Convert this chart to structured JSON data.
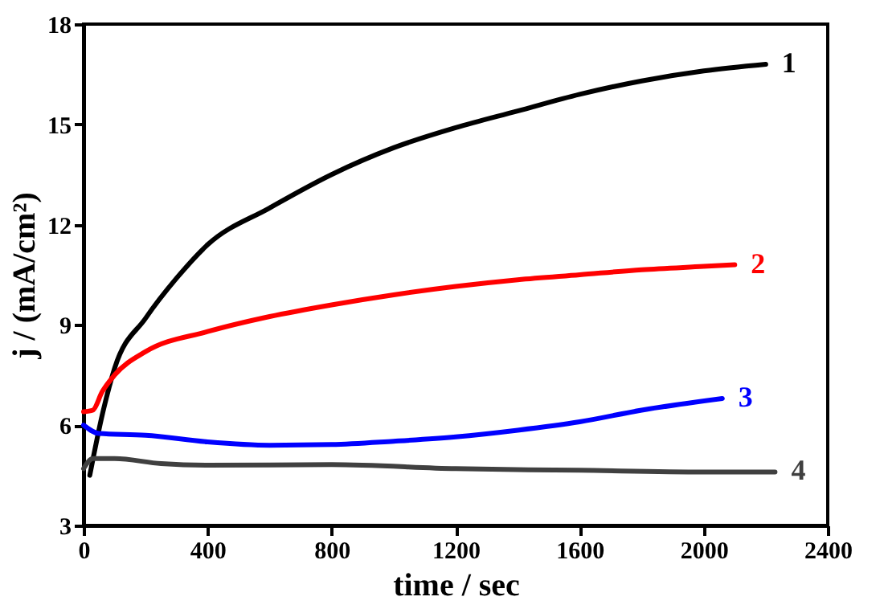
{
  "chart_data": {
    "type": "line",
    "xlabel": "time / sec",
    "ylabel": "j / (mA/cm²)",
    "xlim": [
      0,
      2400
    ],
    "ylim": [
      3,
      18
    ],
    "xticks": [
      0,
      400,
      800,
      1200,
      1600,
      2000,
      2400
    ],
    "yticks": [
      3,
      6,
      9,
      12,
      15,
      18
    ],
    "grid": false,
    "legend": false,
    "marker": "none",
    "line_style": "solid",
    "series": [
      {
        "name": "1",
        "color": "#000000",
        "x": [
          20,
          60,
          100,
          200,
          300,
          400,
          600,
          800,
          1000,
          1200,
          1400,
          1600,
          1800,
          2000,
          2200
        ],
        "values": [
          4.5,
          6.3,
          7.7,
          9.2,
          10.4,
          11.4,
          12.5,
          13.5,
          14.3,
          14.9,
          15.4,
          15.9,
          16.3,
          16.6,
          16.8
        ]
      },
      {
        "name": "2",
        "color": "#ff0000",
        "x": [
          0,
          30,
          60,
          100,
          200,
          400,
          600,
          800,
          1000,
          1200,
          1400,
          1600,
          1800,
          2000,
          2100
        ],
        "values": [
          6.4,
          6.45,
          7.0,
          7.5,
          8.2,
          8.8,
          9.25,
          9.6,
          9.9,
          10.15,
          10.35,
          10.5,
          10.65,
          10.75,
          10.8
        ]
      },
      {
        "name": "3",
        "color": "#0000ff",
        "x": [
          0,
          50,
          200,
          400,
          600,
          800,
          1000,
          1200,
          1400,
          1600,
          1800,
          2060
        ],
        "values": [
          6.0,
          5.75,
          5.7,
          5.5,
          5.4,
          5.42,
          5.52,
          5.65,
          5.85,
          6.1,
          6.45,
          6.8
        ]
      },
      {
        "name": "4",
        "color": "#404040",
        "x": [
          0,
          30,
          100,
          250,
          400,
          800,
          1200,
          1600,
          2000,
          2230
        ],
        "values": [
          4.7,
          5.0,
          5.0,
          4.85,
          4.8,
          4.82,
          4.7,
          4.65,
          4.6,
          4.6
        ]
      }
    ]
  }
}
